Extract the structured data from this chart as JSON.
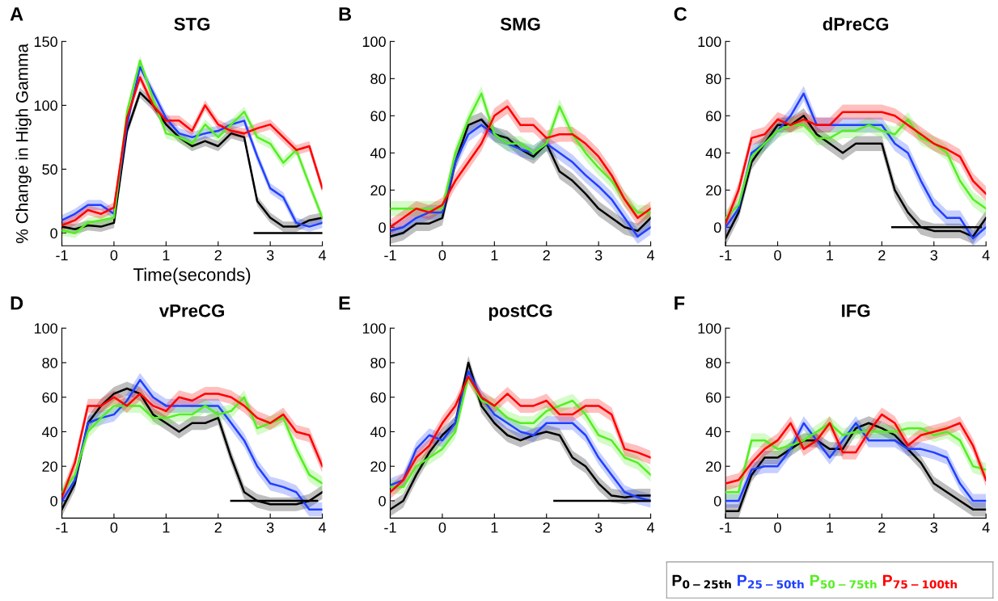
{
  "chart_data": [
    {
      "type": "line",
      "title": "STG",
      "annotations": [
        "A"
      ],
      "xlabel": "Time(seconds)",
      "ylabel": "% Change in High Gamma",
      "xlim": [
        -1,
        4
      ],
      "xticks": [
        -1,
        0,
        1,
        2,
        3,
        4
      ],
      "ylim": [
        -10,
        150
      ],
      "yticks": [
        0,
        50,
        100,
        150
      ],
      "grid": false,
      "x": [
        -1,
        -0.75,
        -0.5,
        -0.25,
        0,
        0.25,
        0.5,
        0.75,
        1,
        1.25,
        1.5,
        1.75,
        2,
        2.25,
        2.5,
        2.75,
        3,
        3.25,
        3.5,
        3.75,
        4
      ],
      "series": [
        {
          "color": "#000000",
          "values": [
            5,
            3,
            6,
            5,
            8,
            80,
            110,
            100,
            85,
            75,
            68,
            72,
            68,
            78,
            75,
            25,
            12,
            5,
            5,
            10,
            12
          ],
          "lower": [
            1,
            -1,
            2,
            1,
            4,
            76,
            106,
            96,
            81,
            71,
            64,
            68,
            64,
            74,
            71,
            21,
            8,
            1,
            1,
            6,
            8
          ],
          "upper": [
            9,
            7,
            10,
            9,
            12,
            84,
            114,
            104,
            89,
            79,
            72,
            76,
            72,
            82,
            79,
            29,
            16,
            9,
            9,
            14,
            16
          ]
        },
        {
          "color": "#2040ff",
          "values": [
            10,
            15,
            22,
            22,
            15,
            85,
            130,
            110,
            90,
            78,
            75,
            78,
            80,
            85,
            88,
            60,
            35,
            28,
            8,
            5,
            8
          ],
          "lower": [
            6,
            11,
            18,
            18,
            11,
            81,
            126,
            106,
            86,
            74,
            71,
            74,
            76,
            81,
            84,
            56,
            31,
            24,
            4,
            1,
            4
          ],
          "upper": [
            14,
            19,
            26,
            26,
            19,
            89,
            134,
            114,
            94,
            82,
            79,
            82,
            84,
            89,
            92,
            64,
            39,
            32,
            12,
            9,
            12
          ]
        },
        {
          "color": "#55ee22",
          "values": [
            2,
            0,
            8,
            10,
            12,
            95,
            135,
            105,
            78,
            75,
            70,
            85,
            75,
            85,
            95,
            75,
            70,
            55,
            65,
            38,
            12
          ],
          "lower": [
            -2,
            -4,
            4,
            6,
            8,
            91,
            131,
            101,
            74,
            71,
            66,
            81,
            71,
            81,
            91,
            71,
            66,
            51,
            61,
            34,
            8
          ],
          "upper": [
            6,
            4,
            12,
            14,
            16,
            99,
            139,
            109,
            82,
            79,
            74,
            89,
            79,
            89,
            99,
            79,
            74,
            59,
            69,
            42,
            16
          ]
        },
        {
          "color": "#ff0000",
          "values": [
            6,
            10,
            18,
            15,
            20,
            90,
            122,
            100,
            88,
            88,
            80,
            100,
            85,
            80,
            78,
            82,
            85,
            75,
            65,
            68,
            35
          ],
          "lower": [
            2,
            6,
            14,
            11,
            16,
            86,
            118,
            96,
            84,
            84,
            76,
            96,
            81,
            76,
            74,
            78,
            81,
            71,
            61,
            64,
            31
          ],
          "upper": [
            10,
            14,
            22,
            19,
            24,
            94,
            126,
            104,
            92,
            92,
            84,
            104,
            89,
            84,
            82,
            86,
            89,
            79,
            69,
            72,
            39
          ]
        },
        {
          "type": "line",
          "color": "#000000",
          "x": [
            2.7,
            4
          ],
          "values": [
            0,
            0
          ]
        }
      ]
    },
    {
      "type": "line",
      "title": "SMG",
      "annotations": [
        "B"
      ],
      "xlim": [
        -1,
        4
      ],
      "xticks": [
        -1,
        0,
        1,
        2,
        3,
        4
      ],
      "ylim": [
        -10,
        100
      ],
      "yticks": [
        0,
        20,
        40,
        60,
        80,
        100
      ],
      "grid": false,
      "x": [
        -1,
        -0.75,
        -0.5,
        -0.25,
        0,
        0.25,
        0.5,
        0.75,
        1,
        1.25,
        1.5,
        1.75,
        2,
        2.25,
        2.5,
        2.75,
        3,
        3.25,
        3.5,
        3.75,
        4
      ],
      "series": [
        {
          "color": "#000000",
          "values": [
            -5,
            -3,
            2,
            2,
            5,
            35,
            55,
            58,
            50,
            48,
            42,
            38,
            45,
            30,
            25,
            18,
            10,
            5,
            0,
            -2,
            5
          ],
          "lower": [
            -9,
            -7,
            -2,
            -2,
            1,
            31,
            51,
            54,
            46,
            44,
            38,
            34,
            41,
            26,
            21,
            14,
            6,
            1,
            -4,
            -6,
            1
          ],
          "upper": [
            -1,
            1,
            6,
            6,
            9,
            39,
            59,
            62,
            54,
            52,
            46,
            42,
            49,
            34,
            29,
            22,
            14,
            9,
            4,
            2,
            9
          ]
        },
        {
          "color": "#2040ff",
          "values": [
            -2,
            0,
            5,
            8,
            8,
            35,
            50,
            55,
            50,
            45,
            42,
            40,
            45,
            40,
            35,
            28,
            22,
            15,
            5,
            -5,
            0
          ],
          "lower": [
            -6,
            -4,
            1,
            4,
            4,
            31,
            46,
            51,
            46,
            41,
            38,
            36,
            41,
            36,
            31,
            24,
            18,
            11,
            1,
            -9,
            -4
          ],
          "upper": [
            2,
            4,
            9,
            12,
            12,
            39,
            54,
            59,
            54,
            49,
            46,
            44,
            49,
            44,
            39,
            32,
            26,
            19,
            9,
            -1,
            4
          ]
        },
        {
          "color": "#55ee22",
          "values": [
            10,
            10,
            10,
            10,
            10,
            40,
            58,
            72,
            50,
            45,
            45,
            40,
            45,
            65,
            50,
            40,
            32,
            25,
            15,
            8,
            8
          ],
          "lower": [
            6,
            6,
            6,
            6,
            6,
            36,
            54,
            68,
            46,
            41,
            41,
            36,
            41,
            61,
            46,
            36,
            28,
            21,
            11,
            4,
            4
          ],
          "upper": [
            14,
            14,
            14,
            14,
            14,
            44,
            62,
            76,
            54,
            49,
            49,
            44,
            49,
            69,
            54,
            44,
            36,
            29,
            19,
            12,
            12
          ]
        },
        {
          "color": "#ff0000",
          "values": [
            0,
            5,
            10,
            8,
            12,
            25,
            35,
            45,
            60,
            65,
            55,
            55,
            48,
            50,
            50,
            45,
            38,
            28,
            15,
            5,
            10
          ],
          "lower": [
            -4,
            1,
            6,
            4,
            8,
            21,
            31,
            41,
            56,
            61,
            51,
            51,
            44,
            46,
            46,
            41,
            34,
            24,
            11,
            1,
            6
          ],
          "upper": [
            4,
            9,
            14,
            12,
            16,
            29,
            39,
            49,
            64,
            69,
            59,
            59,
            52,
            54,
            54,
            49,
            42,
            32,
            19,
            9,
            14
          ]
        }
      ]
    },
    {
      "type": "line",
      "title": "dPreCG",
      "annotations": [
        "C"
      ],
      "xlim": [
        -1,
        4
      ],
      "xticks": [
        -1,
        0,
        1,
        2,
        3,
        4
      ],
      "ylim": [
        -10,
        100
      ],
      "yticks": [
        0,
        20,
        40,
        60,
        80,
        100
      ],
      "grid": false,
      "x": [
        -1,
        -0.75,
        -0.5,
        -0.25,
        0,
        0.25,
        0.5,
        0.75,
        1,
        1.25,
        1.5,
        1.75,
        2,
        2.25,
        2.5,
        2.75,
        3,
        3.25,
        3.5,
        3.75,
        4
      ],
      "series": [
        {
          "color": "#000000",
          "values": [
            -6,
            8,
            35,
            45,
            55,
            55,
            60,
            50,
            45,
            40,
            45,
            45,
            45,
            20,
            8,
            0,
            -2,
            -2,
            -2,
            -5,
            5
          ],
          "lower": [
            -10,
            4,
            31,
            41,
            51,
            51,
            56,
            46,
            41,
            36,
            41,
            41,
            41,
            16,
            4,
            -4,
            -6,
            -6,
            -6,
            -9,
            1
          ],
          "upper": [
            -2,
            12,
            39,
            49,
            59,
            59,
            64,
            54,
            49,
            44,
            49,
            49,
            49,
            24,
            12,
            4,
            2,
            2,
            2,
            -1,
            9
          ]
        },
        {
          "color": "#2040ff",
          "values": [
            0,
            10,
            40,
            45,
            52,
            60,
            72,
            55,
            55,
            55,
            55,
            55,
            55,
            45,
            40,
            25,
            12,
            5,
            5,
            -6,
            0
          ],
          "lower": [
            -4,
            6,
            36,
            41,
            48,
            56,
            68,
            51,
            51,
            51,
            51,
            51,
            51,
            41,
            36,
            21,
            8,
            1,
            1,
            -10,
            -4
          ],
          "upper": [
            4,
            14,
            44,
            49,
            56,
            64,
            76,
            59,
            59,
            59,
            59,
            59,
            59,
            49,
            44,
            29,
            16,
            9,
            9,
            -2,
            4
          ]
        },
        {
          "color": "#55ee22",
          "values": [
            5,
            12,
            38,
            45,
            52,
            55,
            55,
            48,
            48,
            52,
            52,
            55,
            52,
            50,
            58,
            48,
            45,
            40,
            25,
            15,
            10
          ],
          "lower": [
            1,
            8,
            34,
            41,
            48,
            51,
            51,
            44,
            44,
            48,
            48,
            51,
            48,
            46,
            54,
            44,
            41,
            36,
            21,
            11,
            6
          ],
          "upper": [
            9,
            16,
            42,
            49,
            56,
            59,
            59,
            52,
            52,
            56,
            56,
            59,
            56,
            54,
            62,
            52,
            49,
            44,
            29,
            19,
            14
          ]
        },
        {
          "color": "#ff0000",
          "values": [
            2,
            20,
            48,
            50,
            58,
            55,
            58,
            55,
            55,
            62,
            62,
            62,
            62,
            60,
            55,
            50,
            45,
            42,
            38,
            25,
            18
          ],
          "lower": [
            -2,
            16,
            44,
            46,
            54,
            51,
            54,
            51,
            51,
            58,
            58,
            58,
            58,
            56,
            51,
            46,
            41,
            38,
            34,
            21,
            14
          ],
          "upper": [
            6,
            24,
            52,
            54,
            62,
            59,
            62,
            59,
            59,
            66,
            66,
            66,
            66,
            64,
            59,
            54,
            49,
            46,
            42,
            29,
            22
          ]
        },
        {
          "type": "line",
          "color": "#000000",
          "x": [
            2.2,
            3.9
          ],
          "values": [
            0,
            0
          ]
        }
      ]
    },
    {
      "type": "line",
      "title": "vPreCG",
      "annotations": [
        "D"
      ],
      "xlim": [
        -1,
        4
      ],
      "xticks": [
        -1,
        0,
        1,
        2,
        3,
        4
      ],
      "ylim": [
        -10,
        100
      ],
      "yticks": [
        0,
        20,
        40,
        60,
        80,
        100
      ],
      "grid": false,
      "x": [
        -1,
        -0.75,
        -0.5,
        -0.25,
        0,
        0.25,
        0.5,
        0.75,
        1,
        1.25,
        1.5,
        1.75,
        2,
        2.25,
        2.5,
        2.75,
        3,
        3.25,
        3.5,
        3.75,
        4
      ],
      "series": [
        {
          "color": "#000000",
          "values": [
            -5,
            10,
            45,
            55,
            62,
            65,
            62,
            50,
            45,
            40,
            45,
            45,
            48,
            25,
            5,
            0,
            -2,
            -2,
            -2,
            0,
            5
          ],
          "lower": [
            -9,
            6,
            41,
            51,
            58,
            61,
            58,
            46,
            41,
            36,
            41,
            41,
            44,
            21,
            1,
            -4,
            -6,
            -6,
            -6,
            -4,
            1
          ],
          "upper": [
            -1,
            14,
            49,
            59,
            66,
            69,
            66,
            54,
            49,
            44,
            49,
            49,
            52,
            29,
            9,
            4,
            2,
            2,
            2,
            4,
            9
          ]
        },
        {
          "color": "#2040ff",
          "values": [
            0,
            12,
            45,
            48,
            50,
            58,
            70,
            60,
            55,
            55,
            55,
            55,
            55,
            45,
            35,
            20,
            10,
            8,
            5,
            -5,
            -5
          ],
          "lower": [
            -4,
            8,
            41,
            44,
            46,
            54,
            66,
            56,
            51,
            51,
            51,
            51,
            51,
            41,
            31,
            16,
            6,
            4,
            1,
            -9,
            -9
          ],
          "upper": [
            4,
            16,
            49,
            52,
            54,
            62,
            74,
            64,
            59,
            59,
            59,
            59,
            59,
            49,
            39,
            24,
            14,
            12,
            9,
            -1,
            -1
          ]
        },
        {
          "color": "#55ee22",
          "values": [
            5,
            15,
            40,
            48,
            55,
            55,
            55,
            48,
            48,
            50,
            50,
            55,
            50,
            52,
            60,
            42,
            45,
            48,
            30,
            15,
            10
          ],
          "lower": [
            1,
            11,
            36,
            44,
            51,
            51,
            51,
            44,
            44,
            46,
            46,
            51,
            46,
            48,
            56,
            38,
            41,
            44,
            26,
            11,
            6
          ],
          "upper": [
            9,
            19,
            44,
            52,
            59,
            59,
            59,
            52,
            52,
            54,
            54,
            59,
            54,
            56,
            64,
            46,
            49,
            52,
            34,
            19,
            14
          ]
        },
        {
          "color": "#ff0000",
          "values": [
            2,
            22,
            55,
            55,
            60,
            55,
            62,
            55,
            52,
            60,
            58,
            62,
            62,
            60,
            55,
            48,
            45,
            50,
            40,
            38,
            20
          ],
          "lower": [
            -2,
            18,
            51,
            51,
            56,
            51,
            58,
            51,
            48,
            56,
            54,
            58,
            58,
            56,
            51,
            44,
            41,
            46,
            36,
            34,
            16
          ],
          "upper": [
            6,
            26,
            59,
            59,
            64,
            59,
            66,
            59,
            56,
            64,
            62,
            66,
            66,
            64,
            59,
            52,
            49,
            54,
            44,
            42,
            24
          ]
        },
        {
          "type": "line",
          "color": "#000000",
          "x": [
            2.25,
            3.9
          ],
          "values": [
            0,
            0
          ]
        }
      ]
    },
    {
      "type": "line",
      "title": "postCG",
      "annotations": [
        "E"
      ],
      "xlim": [
        -1,
        4
      ],
      "xticks": [
        -1,
        0,
        1,
        2,
        3,
        4
      ],
      "ylim": [
        -10,
        100
      ],
      "yticks": [
        0,
        20,
        40,
        60,
        80,
        100
      ],
      "grid": false,
      "x": [
        -1,
        -0.75,
        -0.5,
        -0.25,
        0,
        0.25,
        0.5,
        0.75,
        1,
        1.25,
        1.5,
        1.75,
        2,
        2.25,
        2.5,
        2.75,
        3,
        3.25,
        3.5,
        3.75,
        4
      ],
      "series": [
        {
          "color": "#000000",
          "values": [
            -5,
            0,
            15,
            28,
            38,
            45,
            80,
            55,
            45,
            38,
            35,
            38,
            40,
            38,
            25,
            20,
            10,
            3,
            2,
            3,
            3
          ],
          "lower": [
            -9,
            -4,
            11,
            24,
            34,
            41,
            76,
            51,
            41,
            34,
            31,
            34,
            36,
            34,
            21,
            16,
            6,
            -1,
            -2,
            -1,
            -1
          ],
          "upper": [
            -1,
            4,
            19,
            32,
            42,
            49,
            84,
            59,
            49,
            42,
            39,
            42,
            44,
            42,
            29,
            24,
            14,
            7,
            6,
            7,
            7
          ]
        },
        {
          "color": "#2040ff",
          "values": [
            9,
            12,
            30,
            38,
            35,
            45,
            75,
            60,
            50,
            45,
            40,
            38,
            45,
            45,
            45,
            38,
            25,
            15,
            5,
            2,
            0
          ],
          "lower": [
            5,
            8,
            26,
            34,
            31,
            41,
            71,
            56,
            46,
            41,
            36,
            34,
            41,
            41,
            41,
            34,
            21,
            11,
            1,
            -2,
            -4
          ],
          "upper": [
            13,
            16,
            34,
            42,
            39,
            49,
            79,
            64,
            54,
            49,
            44,
            42,
            49,
            49,
            49,
            42,
            29,
            19,
            9,
            6,
            4
          ]
        },
        {
          "color": "#55ee22",
          "values": [
            8,
            8,
            20,
            25,
            30,
            40,
            72,
            58,
            55,
            48,
            45,
            45,
            52,
            55,
            58,
            50,
            38,
            35,
            25,
            22,
            15
          ],
          "lower": [
            4,
            4,
            16,
            21,
            26,
            36,
            68,
            54,
            51,
            44,
            41,
            41,
            48,
            51,
            54,
            46,
            34,
            31,
            21,
            18,
            11
          ],
          "upper": [
            12,
            12,
            24,
            29,
            34,
            44,
            76,
            62,
            59,
            52,
            49,
            49,
            56,
            59,
            62,
            54,
            42,
            39,
            29,
            26,
            19
          ]
        },
        {
          "color": "#ff0000",
          "values": [
            5,
            12,
            25,
            32,
            45,
            55,
            72,
            60,
            55,
            62,
            55,
            55,
            58,
            50,
            50,
            55,
            55,
            50,
            30,
            28,
            25
          ],
          "lower": [
            1,
            8,
            21,
            28,
            41,
            51,
            68,
            56,
            51,
            58,
            51,
            51,
            54,
            46,
            46,
            51,
            51,
            46,
            26,
            24,
            21
          ],
          "upper": [
            9,
            16,
            29,
            36,
            49,
            59,
            76,
            64,
            59,
            66,
            59,
            59,
            62,
            54,
            54,
            59,
            59,
            54,
            34,
            32,
            29
          ]
        },
        {
          "type": "line",
          "color": "#000000",
          "x": [
            2.15,
            4
          ],
          "values": [
            0,
            0
          ]
        }
      ]
    },
    {
      "type": "line",
      "title": "IFG",
      "annotations": [
        "F"
      ],
      "xlim": [
        -1,
        4
      ],
      "xticks": [
        -1,
        0,
        1,
        2,
        3,
        4
      ],
      "ylim": [
        -10,
        100
      ],
      "yticks": [
        0,
        20,
        40,
        60,
        80,
        100
      ],
      "grid": false,
      "x": [
        -1,
        -0.75,
        -0.5,
        -0.25,
        0,
        0.25,
        0.5,
        0.75,
        1,
        1.25,
        1.5,
        1.75,
        2,
        2.25,
        2.5,
        2.75,
        3,
        3.25,
        3.5,
        3.75,
        4
      ],
      "series": [
        {
          "name": "P$_{0−25th}$",
          "color": "#000000",
          "values": [
            -6,
            -6,
            15,
            25,
            25,
            30,
            35,
            35,
            30,
            30,
            42,
            45,
            42,
            38,
            30,
            22,
            10,
            5,
            0,
            -5,
            -5
          ],
          "lower": [
            -10,
            -10,
            11,
            21,
            21,
            26,
            31,
            31,
            26,
            26,
            38,
            41,
            38,
            34,
            26,
            18,
            6,
            1,
            -4,
            -9,
            -9
          ],
          "upper": [
            -2,
            -2,
            19,
            29,
            29,
            34,
            39,
            39,
            34,
            34,
            46,
            49,
            46,
            42,
            34,
            26,
            14,
            9,
            4,
            -1,
            -1
          ]
        },
        {
          "name": "P$_{25−50th}$",
          "color": "#2040ff",
          "values": [
            0,
            0,
            18,
            20,
            20,
            30,
            45,
            35,
            25,
            35,
            45,
            35,
            35,
            35,
            30,
            30,
            28,
            25,
            10,
            0,
            0
          ],
          "lower": [
            -4,
            -4,
            14,
            16,
            16,
            26,
            41,
            31,
            21,
            31,
            41,
            31,
            31,
            31,
            26,
            26,
            24,
            21,
            6,
            -4,
            -4
          ],
          "upper": [
            4,
            4,
            22,
            24,
            24,
            34,
            49,
            39,
            29,
            39,
            49,
            39,
            39,
            39,
            34,
            34,
            32,
            29,
            14,
            4,
            4
          ]
        },
        {
          "name": "P$_{50−75th}$",
          "color": "#55ee22",
          "values": [
            5,
            5,
            35,
            35,
            30,
            32,
            35,
            40,
            45,
            38,
            40,
            40,
            40,
            40,
            42,
            42,
            38,
            40,
            35,
            20,
            18
          ],
          "lower": [
            1,
            1,
            31,
            31,
            26,
            28,
            31,
            36,
            41,
            34,
            36,
            36,
            36,
            36,
            38,
            38,
            34,
            36,
            31,
            16,
            14
          ],
          "upper": [
            9,
            9,
            39,
            39,
            34,
            36,
            39,
            44,
            49,
            42,
            44,
            44,
            44,
            44,
            46,
            46,
            42,
            44,
            39,
            24,
            22
          ]
        },
        {
          "name": "P$_{75−100th}$",
          "color": "#ff0000",
          "values": [
            10,
            12,
            22,
            30,
            35,
            45,
            30,
            35,
            45,
            28,
            28,
            40,
            50,
            45,
            32,
            38,
            40,
            42,
            45,
            32,
            12
          ],
          "lower": [
            6,
            8,
            18,
            26,
            31,
            41,
            26,
            31,
            41,
            24,
            24,
            36,
            46,
            41,
            28,
            34,
            36,
            38,
            41,
            28,
            8
          ],
          "upper": [
            14,
            16,
            26,
            34,
            39,
            49,
            34,
            39,
            49,
            32,
            32,
            44,
            54,
            49,
            36,
            42,
            44,
            46,
            49,
            36,
            16
          ]
        }
      ]
    }
  ]
}
